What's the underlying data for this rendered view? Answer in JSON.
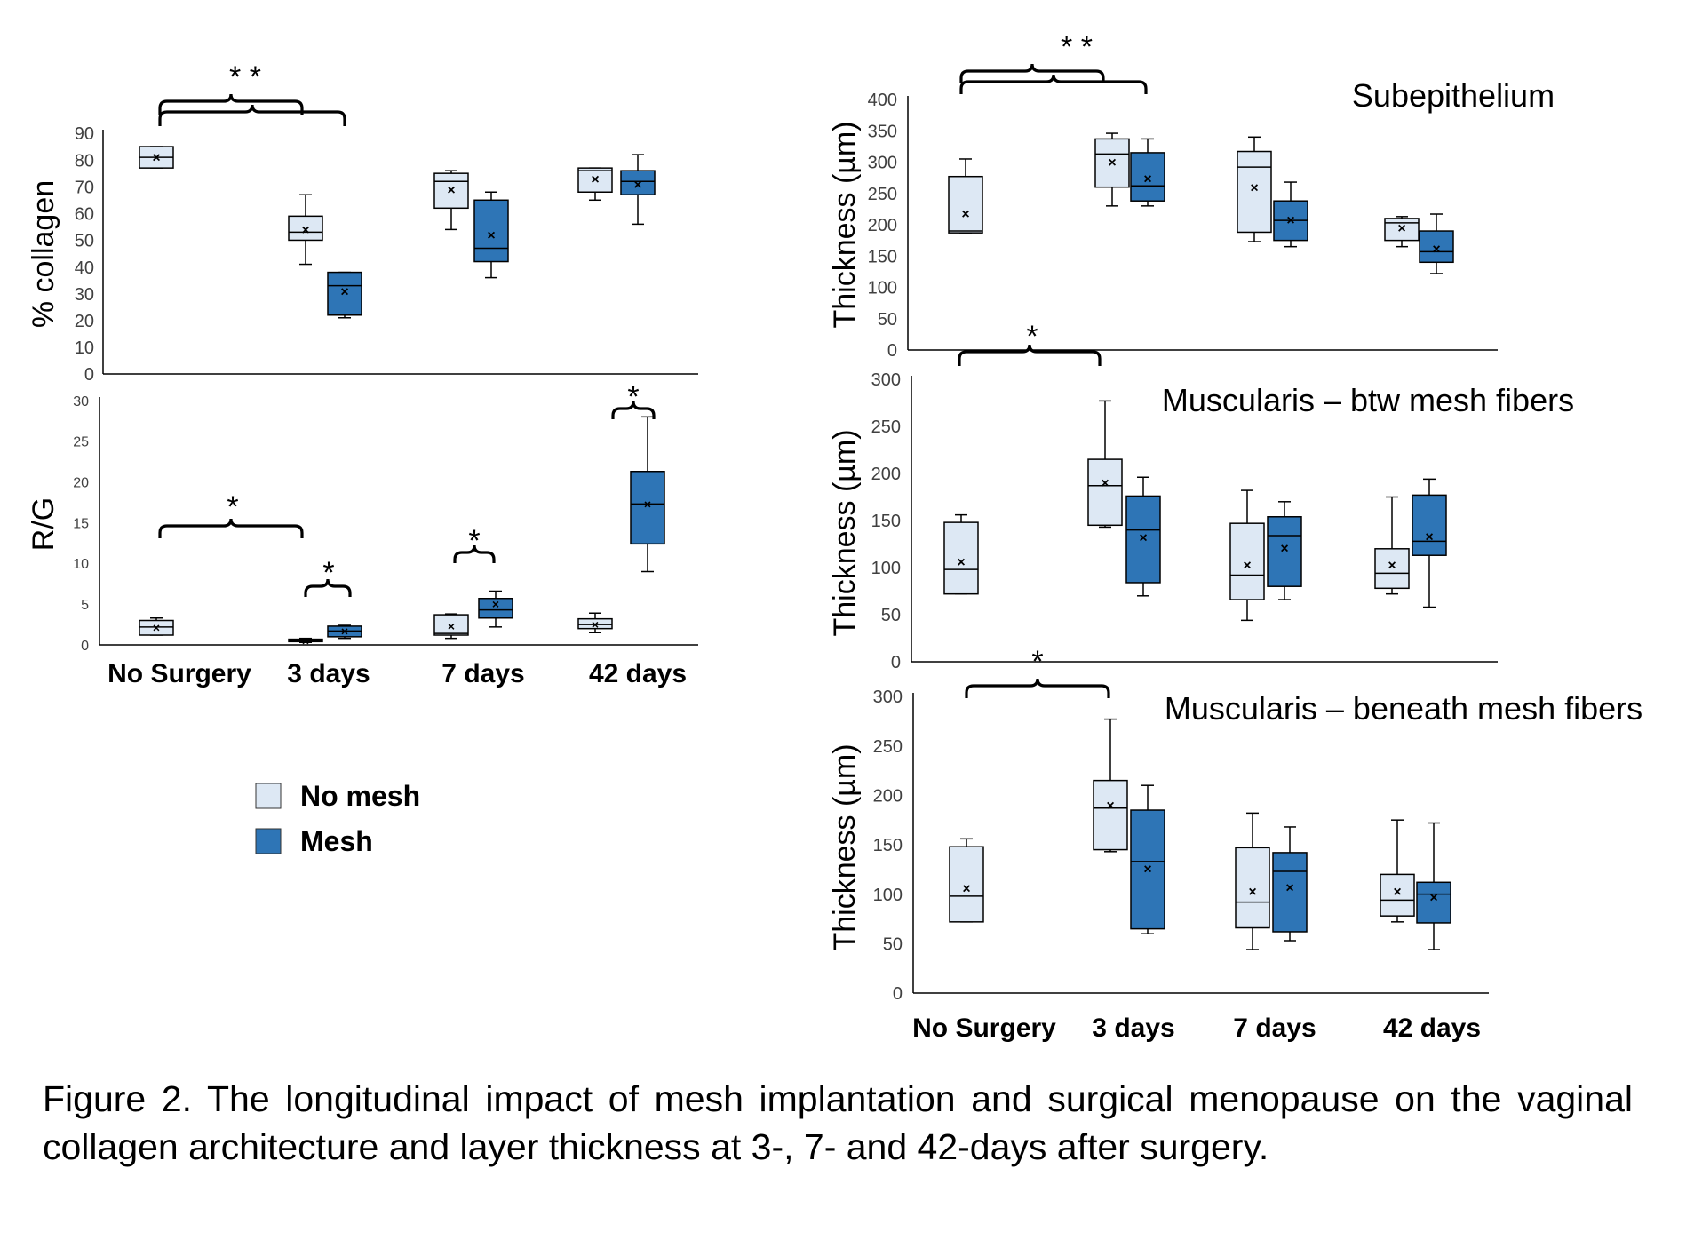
{
  "caption": "Figure 2. The longitudinal impact of mesh implantation and surgical menopause on the vaginal collagen architecture and layer thickness at 3-, 7- and 42-days after surgery.",
  "colors": {
    "no_mesh_fill": "#dde8f4",
    "mesh_fill": "#2e75b6",
    "stroke": "#000000",
    "axis": "#000000"
  },
  "legend": [
    {
      "label": "No mesh",
      "color": "#dde8f4"
    },
    {
      "label": "Mesh",
      "color": "#2e75b6"
    }
  ],
  "chart_data": [
    {
      "type": "box",
      "id": "collagen",
      "title": "",
      "xlabel": "",
      "ylabel": "% collagen",
      "ylim": [
        0,
        90
      ],
      "yticks": [
        0,
        10,
        20,
        30,
        40,
        50,
        60,
        70,
        80,
        90
      ],
      "categories": [
        "No Surgery",
        "3 days",
        "7 days",
        "42 days"
      ],
      "series": [
        {
          "name": "No mesh",
          "boxes": [
            {
              "category": "No Surgery",
              "min": 77,
              "q1": 77,
              "median": 81,
              "q3": 85,
              "max": 85,
              "mean": 81
            },
            {
              "category": "3 days",
              "min": 41,
              "q1": 50,
              "median": 53,
              "q3": 59,
              "max": 67,
              "mean": 54
            },
            {
              "category": "7 days",
              "min": 54,
              "q1": 62,
              "median": 72,
              "q3": 75,
              "max": 76,
              "mean": 69
            },
            {
              "category": "42 days",
              "min": 65,
              "q1": 68,
              "median": 76,
              "q3": 77,
              "max": 77,
              "mean": 73
            }
          ]
        },
        {
          "name": "Mesh",
          "boxes": [
            {
              "category": "3 days",
              "min": 21,
              "q1": 22,
              "median": 33,
              "q3": 38,
              "max": 38,
              "mean": 31
            },
            {
              "category": "7 days",
              "min": 36,
              "q1": 42,
              "median": 47,
              "q3": 65,
              "max": 68,
              "mean": 52
            },
            {
              "category": "42 days",
              "min": 56,
              "q1": 67,
              "median": 72,
              "q3": 76,
              "max": 82,
              "mean": 71
            }
          ]
        }
      ],
      "annotations": [
        {
          "text": "* *",
          "from": "No Surgery",
          "to": [
            "3 days",
            "3 days"
          ]
        }
      ]
    },
    {
      "type": "box",
      "id": "rg",
      "title": "",
      "xlabel": "",
      "ylabel": "R/G",
      "ylim": [
        0,
        30
      ],
      "yticks": [
        0,
        5,
        10,
        15,
        20,
        25,
        30
      ],
      "categories": [
        "No Surgery",
        "3 days",
        "7 days",
        "42 days"
      ],
      "series": [
        {
          "name": "No mesh",
          "boxes": [
            {
              "category": "No Surgery",
              "min": 1.2,
              "q1": 1.2,
              "median": 2.2,
              "q3": 3.0,
              "max": 3.3,
              "mean": 2.1
            },
            {
              "category": "3 days",
              "min": 0.3,
              "q1": 0.4,
              "median": 0.5,
              "q3": 0.7,
              "max": 0.8,
              "mean": 0.5
            },
            {
              "category": "7 days",
              "min": 0.8,
              "q1": 1.2,
              "median": 1.4,
              "q3": 3.7,
              "max": 3.8,
              "mean": 2.3
            },
            {
              "category": "42 days",
              "min": 1.5,
              "q1": 2.0,
              "median": 2.5,
              "q3": 3.2,
              "max": 3.9,
              "mean": 2.5
            }
          ]
        },
        {
          "name": "Mesh",
          "boxes": [
            {
              "category": "3 days",
              "min": 0.8,
              "q1": 1.0,
              "median": 1.7,
              "q3": 2.3,
              "max": 2.4,
              "mean": 1.7
            },
            {
              "category": "7 days",
              "min": 2.2,
              "q1": 3.3,
              "median": 4.3,
              "q3": 5.7,
              "max": 6.6,
              "mean": 5.0
            },
            {
              "category": "42 days",
              "min": 9,
              "q1": 12.4,
              "median": 17.3,
              "q3": 21.3,
              "max": 28,
              "mean": 17.3
            }
          ]
        }
      ],
      "annotations": [
        {
          "text": "*"
        },
        {
          "text": "*"
        },
        {
          "text": "*"
        },
        {
          "text": "*"
        }
      ]
    },
    {
      "type": "box",
      "id": "subepithelium",
      "title": "Subepithelium",
      "xlabel": "",
      "ylabel": "Thickness (µm)",
      "ylim": [
        0,
        400
      ],
      "yticks": [
        0,
        50,
        100,
        150,
        200,
        250,
        300,
        350,
        400
      ],
      "categories": [
        "No Surgery",
        "3 days",
        "7 days",
        "42 days"
      ],
      "series": [
        {
          "name": "No mesh",
          "boxes": [
            {
              "category": "No Surgery",
              "min": 187,
              "q1": 187,
              "median": 190,
              "q3": 277,
              "max": 305,
              "mean": 218
            },
            {
              "category": "3 days",
              "min": 230,
              "q1": 260,
              "median": 313,
              "q3": 337,
              "max": 346,
              "mean": 300
            },
            {
              "category": "7 days",
              "min": 173,
              "q1": 188,
              "median": 292,
              "q3": 317,
              "max": 340,
              "mean": 260
            },
            {
              "category": "42 days",
              "min": 165,
              "q1": 175,
              "median": 203,
              "q3": 210,
              "max": 213,
              "mean": 195
            }
          ]
        },
        {
          "name": "Mesh",
          "boxes": [
            {
              "category": "3 days",
              "min": 230,
              "q1": 238,
              "median": 262,
              "q3": 315,
              "max": 337,
              "mean": 274
            },
            {
              "category": "7 days",
              "min": 165,
              "q1": 175,
              "median": 207,
              "q3": 238,
              "max": 268,
              "mean": 208
            },
            {
              "category": "42 days",
              "min": 122,
              "q1": 140,
              "median": 157,
              "q3": 190,
              "max": 217,
              "mean": 162
            }
          ]
        }
      ],
      "annotations": [
        {
          "text": "* *"
        }
      ]
    },
    {
      "type": "box",
      "id": "musc_btw",
      "title": "Muscularis – btw mesh fibers",
      "xlabel": "",
      "ylabel": "Thickness (µm)",
      "ylim": [
        0,
        300
      ],
      "yticks": [
        0,
        50,
        100,
        150,
        200,
        250,
        300
      ],
      "categories": [
        "No Surgery",
        "3 days",
        "7 days",
        "42 days"
      ],
      "series": [
        {
          "name": "No mesh",
          "boxes": [
            {
              "category": "No Surgery",
              "min": 72,
              "q1": 72,
              "median": 98,
              "q3": 148,
              "max": 156,
              "mean": 106
            },
            {
              "category": "3 days",
              "min": 143,
              "q1": 145,
              "median": 187,
              "q3": 215,
              "max": 277,
              "mean": 190
            },
            {
              "category": "7 days",
              "min": 44,
              "q1": 66,
              "median": 92,
              "q3": 147,
              "max": 182,
              "mean": 103
            },
            {
              "category": "42 days",
              "min": 72,
              "q1": 78,
              "median": 94,
              "q3": 120,
              "max": 175,
              "mean": 103
            }
          ]
        },
        {
          "name": "Mesh",
          "boxes": [
            {
              "category": "3 days",
              "min": 70,
              "q1": 84,
              "median": 140,
              "q3": 176,
              "max": 196,
              "mean": 132
            },
            {
              "category": "7 days",
              "min": 66,
              "q1": 80,
              "median": 134,
              "q3": 154,
              "max": 170,
              "mean": 121
            },
            {
              "category": "42 days",
              "min": 58,
              "q1": 113,
              "median": 128,
              "q3": 177,
              "max": 194,
              "mean": 133
            }
          ]
        }
      ],
      "annotations": [
        {
          "text": "*"
        }
      ]
    },
    {
      "type": "box",
      "id": "musc_beneath",
      "title": "Muscularis – beneath mesh fibers",
      "xlabel": "",
      "ylabel": "Thickness (µm)",
      "ylim": [
        0,
        300
      ],
      "yticks": [
        0,
        50,
        100,
        150,
        200,
        250,
        300
      ],
      "categories": [
        "No Surgery",
        "3 days",
        "7 days",
        "42 days"
      ],
      "series": [
        {
          "name": "No mesh",
          "boxes": [
            {
              "category": "No Surgery",
              "min": 72,
              "q1": 72,
              "median": 98,
              "q3": 148,
              "max": 156,
              "mean": 106
            },
            {
              "category": "3 days",
              "min": 143,
              "q1": 145,
              "median": 187,
              "q3": 215,
              "max": 277,
              "mean": 190
            },
            {
              "category": "7 days",
              "min": 44,
              "q1": 66,
              "median": 92,
              "q3": 147,
              "max": 182,
              "mean": 103
            },
            {
              "category": "42 days",
              "min": 72,
              "q1": 78,
              "median": 94,
              "q3": 120,
              "max": 175,
              "mean": 103
            }
          ]
        },
        {
          "name": "Mesh",
          "boxes": [
            {
              "category": "3 days",
              "min": 60,
              "q1": 65,
              "median": 133,
              "q3": 185,
              "max": 210,
              "mean": 126
            },
            {
              "category": "7 days",
              "min": 53,
              "q1": 62,
              "median": 123,
              "q3": 142,
              "max": 168,
              "mean": 107
            },
            {
              "category": "42 days",
              "min": 44,
              "q1": 71,
              "median": 100,
              "q3": 112,
              "max": 172,
              "mean": 97
            }
          ]
        }
      ],
      "annotations": [
        {
          "text": "*"
        }
      ]
    }
  ]
}
